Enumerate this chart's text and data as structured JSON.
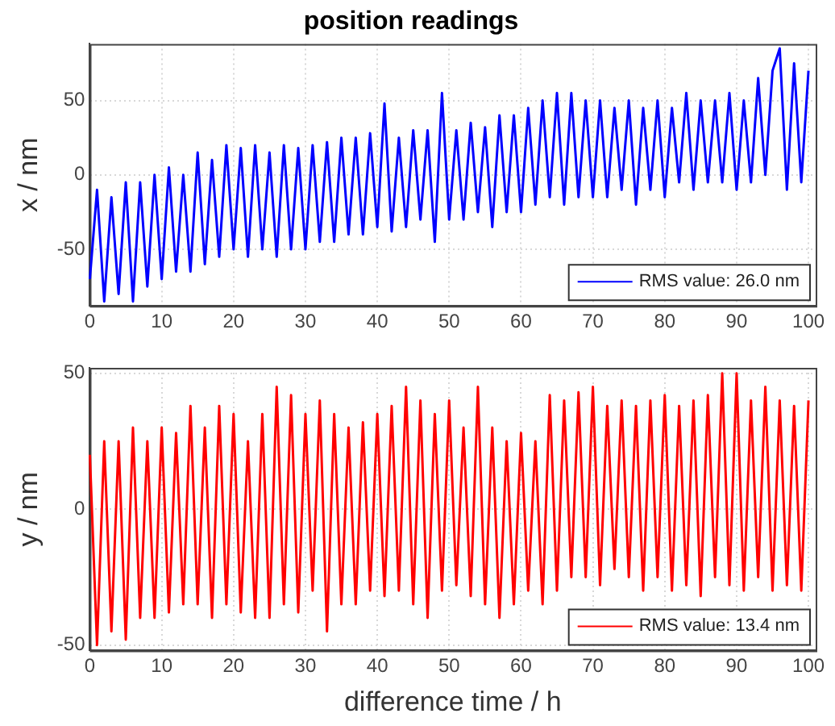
{
  "chart_data": [
    {
      "type": "line",
      "title": "position readings",
      "ylabel": "x / nm",
      "xlim": [
        0,
        101
      ],
      "xticks": [
        0,
        10,
        20,
        30,
        40,
        50,
        60,
        70,
        80,
        90,
        100
      ],
      "ylim": [
        -88,
        88
      ],
      "yticks": [
        -50,
        0,
        50
      ],
      "grid": true,
      "legend": "bottom right",
      "x": [
        0,
        1,
        2,
        3,
        4,
        5,
        6,
        7,
        8,
        9,
        10,
        11,
        12,
        13,
        14,
        15,
        16,
        17,
        18,
        19,
        20,
        21,
        22,
        23,
        24,
        25,
        26,
        27,
        28,
        29,
        30,
        31,
        32,
        33,
        34,
        35,
        36,
        37,
        38,
        39,
        40,
        41,
        42,
        43,
        44,
        45,
        46,
        47,
        48,
        49,
        50,
        51,
        52,
        53,
        54,
        55,
        56,
        57,
        58,
        59,
        60,
        61,
        62,
        63,
        64,
        65,
        66,
        67,
        68,
        69,
        70,
        71,
        72,
        73,
        74,
        75,
        76,
        77,
        78,
        79,
        80,
        81,
        82,
        83,
        84,
        85,
        86,
        87,
        88,
        89,
        90,
        91,
        92,
        93,
        94,
        95,
        96,
        97,
        98,
        99,
        100
      ],
      "series": [
        {
          "name": "RMS value: 26.0 nm",
          "color": "#0000ff",
          "values": [
            -70,
            -10,
            -85,
            -15,
            -80,
            -5,
            -85,
            -5,
            -75,
            0,
            -70,
            5,
            -65,
            0,
            -65,
            15,
            -60,
            10,
            -55,
            20,
            -50,
            18,
            -55,
            20,
            -50,
            15,
            -55,
            20,
            -50,
            18,
            -50,
            20,
            -45,
            22,
            -45,
            25,
            -40,
            25,
            -40,
            28,
            -35,
            48,
            -38,
            25,
            -35,
            30,
            -30,
            30,
            -45,
            55,
            -30,
            30,
            -30,
            35,
            -25,
            32,
            -35,
            40,
            -25,
            40,
            -25,
            45,
            -20,
            50,
            -15,
            55,
            -20,
            55,
            -15,
            50,
            -15,
            50,
            -15,
            45,
            -10,
            50,
            -20,
            45,
            -10,
            50,
            -15,
            45,
            -5,
            55,
            -10,
            50,
            -5,
            50,
            -5,
            55,
            -10,
            50,
            -5,
            65,
            0,
            70,
            85,
            -10,
            75,
            -5,
            70
          ]
        }
      ]
    },
    {
      "type": "line",
      "ylabel": "y / nm",
      "xlabel": "difference time / h",
      "xlim": [
        0,
        101
      ],
      "xticks": [
        0,
        10,
        20,
        30,
        40,
        50,
        60,
        70,
        80,
        90,
        100
      ],
      "ylim": [
        -52,
        52
      ],
      "yticks": [
        -50,
        0,
        50
      ],
      "grid": true,
      "legend": "bottom right",
      "x": [
        0,
        1,
        2,
        3,
        4,
        5,
        6,
        7,
        8,
        9,
        10,
        11,
        12,
        13,
        14,
        15,
        16,
        17,
        18,
        19,
        20,
        21,
        22,
        23,
        24,
        25,
        26,
        27,
        28,
        29,
        30,
        31,
        32,
        33,
        34,
        35,
        36,
        37,
        38,
        39,
        40,
        41,
        42,
        43,
        44,
        45,
        46,
        47,
        48,
        49,
        50,
        51,
        52,
        53,
        54,
        55,
        56,
        57,
        58,
        59,
        60,
        61,
        62,
        63,
        64,
        65,
        66,
        67,
        68,
        69,
        70,
        71,
        72,
        73,
        74,
        75,
        76,
        77,
        78,
        79,
        80,
        81,
        82,
        83,
        84,
        85,
        86,
        87,
        88,
        89,
        90,
        91,
        92,
        93,
        94,
        95,
        96,
        97,
        98,
        99,
        100
      ],
      "series": [
        {
          "name": "RMS value: 13.4 nm",
          "color": "#ff0000",
          "values": [
            20,
            -50,
            25,
            -45,
            25,
            -48,
            30,
            -40,
            25,
            -40,
            30,
            -38,
            28,
            -35,
            38,
            -35,
            30,
            -40,
            38,
            -35,
            35,
            -38,
            25,
            -40,
            35,
            -40,
            45,
            -35,
            42,
            -38,
            35,
            -30,
            40,
            -45,
            35,
            -35,
            30,
            -35,
            32,
            -30,
            35,
            -32,
            38,
            -30,
            45,
            -35,
            40,
            -40,
            35,
            -30,
            40,
            -28,
            30,
            -32,
            45,
            -35,
            30,
            -40,
            25,
            -35,
            28,
            -30,
            25,
            -35,
            42,
            -30,
            40,
            -25,
            43,
            -25,
            45,
            -28,
            38,
            -22,
            40,
            -25,
            38,
            -30,
            40,
            -25,
            42,
            -30,
            38,
            -28,
            40,
            -32,
            42,
            -25,
            50,
            -28,
            50,
            -30,
            40,
            -25,
            45,
            -30,
            40,
            -28,
            38,
            -30,
            40
          ]
        }
      ]
    }
  ]
}
